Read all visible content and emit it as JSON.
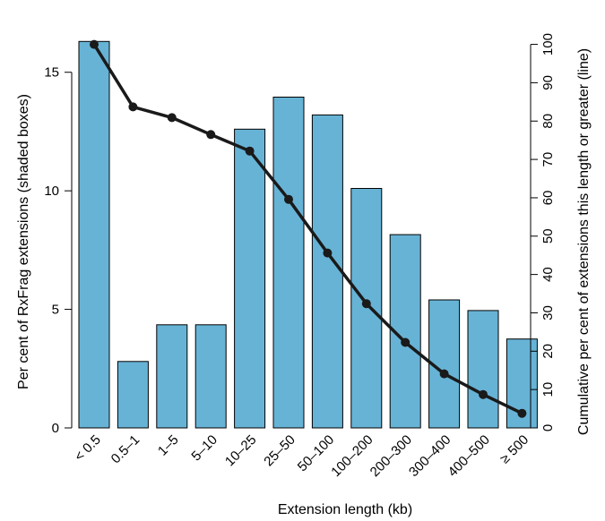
{
  "chart_data": {
    "type": "bar",
    "xlabel": "Extension length (kb)",
    "ylabel": "Per cent of RxFrag extensions (shaded boxes)",
    "y2label": "Cumulative per cent of extensions this length or greater (line)",
    "categories": [
      "< 0.5",
      "0.5–1",
      "1–5",
      "5–10",
      "10–25",
      "25–50",
      "50–100",
      "100–200",
      "200–300",
      "300–400",
      "400–500",
      "≥ 500"
    ],
    "series": [
      {
        "type": "bar",
        "axis": "left",
        "color": "#67b3d6",
        "values": [
          16.3,
          2.8,
          4.35,
          4.35,
          12.6,
          13.95,
          13.2,
          10.1,
          8.15,
          5.4,
          4.95,
          3.75
        ]
      },
      {
        "type": "line",
        "axis": "right",
        "color": "#1a1a1a",
        "values": [
          100,
          83.7,
          80.9,
          76.5,
          72.2,
          59.6,
          45.6,
          32.4,
          22.3,
          14.1,
          8.7,
          3.8
        ]
      }
    ],
    "ylim": [
      0,
      16.5
    ],
    "y2lim": [
      0,
      102
    ],
    "yticks": [
      0,
      5,
      10,
      15
    ],
    "y2ticks": [
      0,
      10,
      20,
      30,
      40,
      50,
      60,
      70,
      80,
      90,
      100
    ]
  }
}
